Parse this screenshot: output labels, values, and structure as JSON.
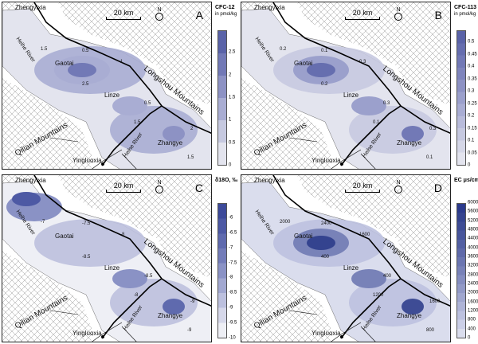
{
  "common": {
    "zhengyixia": "Zhengyixia",
    "scale": "20 km",
    "north": "N",
    "heihe": "Heihe River",
    "gaotai": "Gaotai",
    "linze": "Linze",
    "zhangye": "Zhangye",
    "yingluoxia": "Yingluoxia",
    "longshou": "Longshou Mountains",
    "qilian": "Qilian Mountains"
  },
  "panels": [
    {
      "letter": "A",
      "title": "CFC-12",
      "unit": "in pmol/kg",
      "ticks": [
        "2.5",
        "2",
        "1.5",
        "1",
        "0.5",
        "0"
      ],
      "colors": [
        "#5a63a8",
        "#7279b6",
        "#8d92c4",
        "#a9add3",
        "#c6c9e0",
        "#e3e4ee"
      ],
      "contours": [
        "1.5",
        "0.5",
        "1",
        "2.5",
        "1.5",
        "0.5",
        "2",
        "1.5"
      ]
    },
    {
      "letter": "B",
      "title": "CFC-113",
      "unit": "in pmol/kg",
      "ticks": [
        "0.5",
        "0.45",
        "0.4",
        "0.35",
        "0.3",
        "0.25",
        "0.2",
        "0.15",
        "0.1",
        "0.05",
        "0"
      ],
      "colors": [
        "#5a63a8",
        "#666eaf",
        "#7279b6",
        "#7f85bd",
        "#8d92c4",
        "#9ba0cc",
        "#a9add3",
        "#b8bbda",
        "#c6c9e0",
        "#d5d7e7",
        "#e3e4ee"
      ],
      "contours": [
        "0.2",
        "0.1",
        "0.3",
        "0.2",
        "0.1",
        "0.3",
        "0.3",
        "0.1"
      ]
    },
    {
      "letter": "C",
      "title": "δ18O, ‰",
      "unit": "",
      "ticks": [
        "-6",
        "-6.5",
        "-7",
        "-7.5",
        "-8",
        "-8.5",
        "-9",
        "-9.5",
        "-10"
      ],
      "colors": [
        "#3d4a9a",
        "#4d59a4",
        "#5f6aae",
        "#737cb9",
        "#8a92c5",
        "#a2a8d1",
        "#bcc0de",
        "#d6d8ea",
        "#eeeff5"
      ],
      "contours": [
        "-7",
        "-7.5",
        "-8",
        "-8.5",
        "-8",
        "-8.5",
        "-9",
        "-9"
      ]
    },
    {
      "letter": "D",
      "title": "EC μs/cm",
      "unit": "",
      "ticks": [
        "6000",
        "5600",
        "5200",
        "4800",
        "4400",
        "4000",
        "3600",
        "3200",
        "2800",
        "2400",
        "2000",
        "1600",
        "1200",
        "800",
        "400",
        "0"
      ],
      "colors": [
        "#2b3a8c",
        "#34438f",
        "#3e4c95",
        "#48569c",
        "#5360a3",
        "#5f6aaa",
        "#6b76b1",
        "#7882b8",
        "#858ec0",
        "#929ac7",
        "#a0a7cf",
        "#aeb4d7",
        "#bcc1df",
        "#cbcfe7",
        "#dadded"
      ],
      "contours": [
        "2000",
        "2400",
        "1600",
        "400",
        "1200",
        "400",
        "1600",
        "800"
      ]
    }
  ]
}
